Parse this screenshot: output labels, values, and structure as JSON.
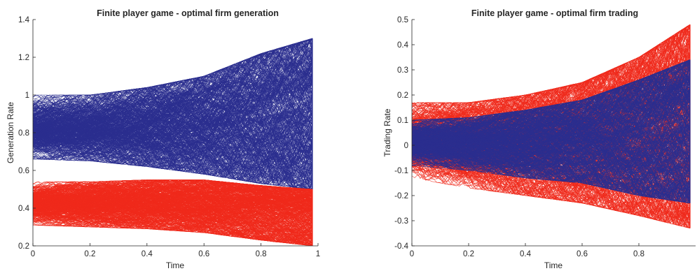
{
  "chart_data": [
    {
      "type": "line",
      "title": "Finite player game - optimal firm generation",
      "xlabel": "Time",
      "ylabel": "Generation Rate",
      "xlim": [
        0,
        1
      ],
      "ylim": [
        0.2,
        1.4
      ],
      "xticks": [
        0,
        0.2,
        0.4,
        0.6,
        0.8,
        1
      ],
      "xtick_labels": [
        "0",
        "0.2",
        "0.4",
        "0.6",
        "0.8",
        "1"
      ],
      "yticks": [
        0.2,
        0.4,
        0.6,
        0.8,
        1,
        1.2,
        1.4
      ],
      "ytick_labels": [
        "0.2",
        "0.4",
        "0.6",
        "0.8",
        "1",
        "1.2",
        "1.4"
      ],
      "grid": false,
      "series": [
        {
          "color": "#2b2f8f",
          "path_count": 500,
          "x": [
            0,
            0.2,
            0.4,
            0.6,
            0.8,
            0.98
          ],
          "center": [
            0.82,
            0.82,
            0.83,
            0.84,
            0.87,
            0.9
          ],
          "lower_envelope": [
            0.66,
            0.65,
            0.62,
            0.58,
            0.53,
            0.5
          ],
          "upper_envelope": [
            1.0,
            1.0,
            1.04,
            1.1,
            1.22,
            1.3
          ],
          "terminal_range": [
            0.5,
            1.3
          ]
        },
        {
          "color": "#f02a1c",
          "path_count": 500,
          "x": [
            0,
            0.2,
            0.4,
            0.6,
            0.8,
            0.98
          ],
          "center": [
            0.42,
            0.42,
            0.42,
            0.41,
            0.4,
            0.38
          ],
          "lower_envelope": [
            0.31,
            0.3,
            0.29,
            0.27,
            0.23,
            0.2
          ],
          "upper_envelope": [
            0.54,
            0.54,
            0.55,
            0.55,
            0.52,
            0.5
          ],
          "terminal_range": [
            0.2,
            0.5
          ]
        }
      ]
    },
    {
      "type": "line",
      "title": "Finite player game - optimal firm trading",
      "xlabel": "Time",
      "ylabel": "Trading Rate",
      "xlim": [
        0,
        1
      ],
      "ylim": [
        -0.4,
        0.5
      ],
      "xticks": [
        0,
        0.2,
        0.4,
        0.6,
        0.8
      ],
      "xtick_labels": [
        "0",
        "0.2",
        "0.4",
        "0.6",
        "0.8"
      ],
      "yticks": [
        -0.4,
        -0.3,
        -0.2,
        -0.1,
        0,
        0.1,
        0.2,
        0.3,
        0.4,
        0.5
      ],
      "ytick_labels": [
        "-0.4",
        "-0.3",
        "-0.2",
        "-0.1",
        "0",
        "0.1",
        "0.2",
        "0.3",
        "0.4",
        "0.5"
      ],
      "grid": false,
      "series": [
        {
          "color": "#f02a1c",
          "path_count": 500,
          "x": [
            0,
            0.2,
            0.4,
            0.6,
            0.8,
            0.98
          ],
          "center": [
            0.01,
            0.01,
            0.01,
            0.01,
            0.02,
            0.03
          ],
          "lower_envelope": [
            -0.13,
            -0.17,
            -0.2,
            -0.23,
            -0.28,
            -0.33
          ],
          "upper_envelope": [
            0.17,
            0.17,
            0.2,
            0.25,
            0.35,
            0.48
          ],
          "terminal_range": [
            -0.33,
            0.48
          ]
        },
        {
          "color": "#2b2f8f",
          "path_count": 500,
          "x": [
            0,
            0.2,
            0.4,
            0.6,
            0.8,
            0.98
          ],
          "center": [
            0.01,
            0.01,
            0.01,
            0.02,
            0.03,
            0.05
          ],
          "lower_envelope": [
            -0.08,
            -0.1,
            -0.13,
            -0.15,
            -0.2,
            -0.23
          ],
          "upper_envelope": [
            0.1,
            0.11,
            0.14,
            0.18,
            0.26,
            0.34
          ],
          "terminal_range": [
            -0.23,
            0.34
          ]
        }
      ]
    }
  ]
}
